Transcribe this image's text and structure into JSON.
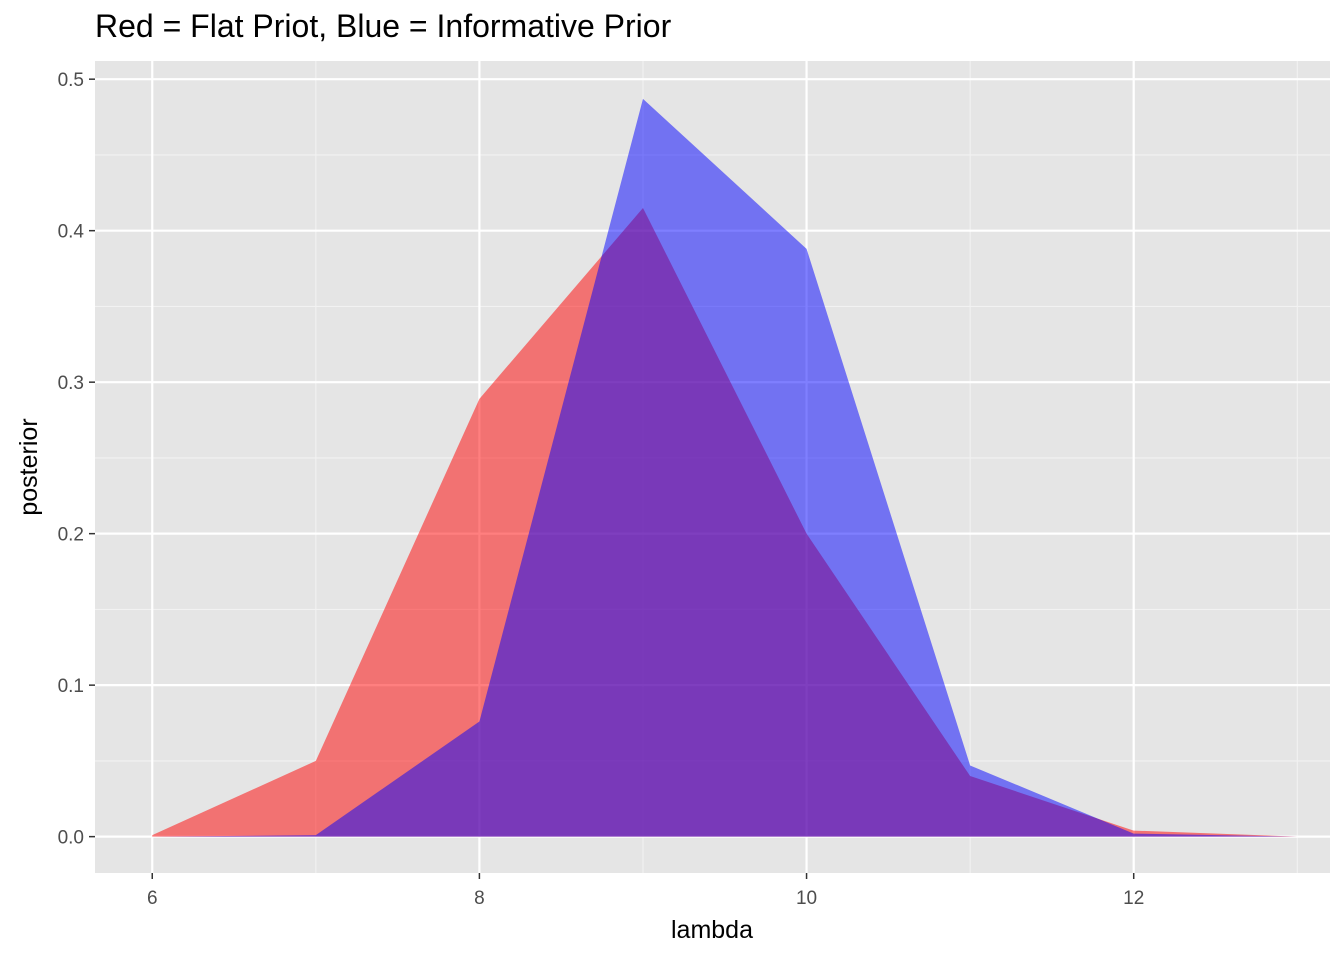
{
  "chart_data": {
    "type": "area",
    "title": "Red = Flat Priot, Blue = Informative Prior",
    "xlabel": "lambda",
    "ylabel": "posterior",
    "xlim": [
      5.65,
      13.2
    ],
    "ylim": [
      -0.024,
      0.512
    ],
    "x_ticks": [
      6,
      8,
      10,
      12
    ],
    "y_ticks": [
      0.0,
      0.1,
      0.2,
      0.3,
      0.4,
      0.5
    ],
    "y_tick_labels": [
      "0.0",
      "0.1",
      "0.2",
      "0.3",
      "0.4",
      "0.5"
    ],
    "grid": true,
    "legend": "none",
    "series": [
      {
        "color": "#f8766d",
        "fill": "#ff0000",
        "opacity": 0.5,
        "x": [
          6,
          7,
          8,
          9,
          10,
          11,
          12,
          13
        ],
        "values": [
          0.001,
          0.05,
          0.289,
          0.415,
          0.2,
          0.04,
          0.004,
          0.0
        ]
      },
      {
        "color": "#0000ff",
        "fill": "#0000ff",
        "opacity": 0.5,
        "x": [
          6,
          7,
          8,
          9,
          10,
          11,
          12,
          13
        ],
        "values": [
          0.0,
          0.001,
          0.076,
          0.487,
          0.388,
          0.047,
          0.002,
          0.0
        ]
      }
    ]
  }
}
